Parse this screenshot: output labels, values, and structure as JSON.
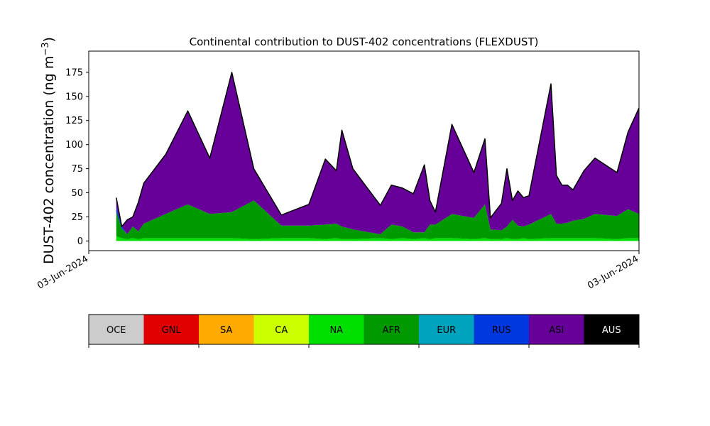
{
  "chart_data": {
    "type": "area",
    "stacked": true,
    "title": "Continental contribution to DUST-402 concentrations (FLEXDUST)",
    "ylabel": "DUST-402 concentration (ng m",
    "ylabel_sup": "−3",
    "ylabel_tail": ")",
    "ylim": [
      -10,
      197
    ],
    "yticks": [
      0,
      25,
      50,
      75,
      100,
      125,
      150,
      175
    ],
    "x_tick_labels": [
      "03-Jun-2024",
      "03-Jun-2024"
    ],
    "x_index_range": [
      0,
      100
    ],
    "x": [
      5,
      6,
      7,
      8,
      9,
      10,
      14,
      18,
      22,
      26,
      30,
      35,
      40,
      43,
      45,
      46,
      48,
      53,
      55,
      57,
      59,
      61,
      62,
      63,
      66,
      70,
      72,
      73,
      75,
      76,
      77,
      78,
      79,
      80,
      84,
      85,
      86,
      87,
      88,
      90,
      92,
      96,
      98,
      100
    ],
    "series": [
      {
        "name": "GNL",
        "color": "#e00000",
        "values": [
          0,
          0,
          0,
          0,
          0,
          0,
          0,
          0,
          0,
          0,
          0,
          0,
          0,
          0,
          0,
          0,
          0,
          0,
          0,
          0,
          0,
          0,
          0,
          0,
          0,
          0,
          0,
          0,
          0,
          0,
          0,
          0,
          0,
          0,
          0,
          0,
          0,
          0,
          0,
          0,
          0,
          0,
          0,
          0
        ]
      },
      {
        "name": "NA",
        "color": "#00e000",
        "values": [
          5,
          3,
          2,
          3,
          2,
          3,
          3,
          3,
          3,
          3,
          2,
          3,
          3,
          2,
          3,
          2,
          2,
          3,
          2,
          3,
          2,
          3,
          2,
          3,
          3,
          2,
          3,
          2,
          2,
          3,
          2,
          2,
          3,
          2,
          3,
          3,
          3,
          3,
          3,
          3,
          3,
          2,
          3,
          3
        ]
      },
      {
        "name": "AFR",
        "color": "#009a00",
        "values": [
          25,
          10,
          5,
          12,
          8,
          15,
          25,
          35,
          25,
          27,
          40,
          13,
          13,
          15,
          15,
          13,
          10,
          4,
          15,
          12,
          7,
          6,
          15,
          14,
          25,
          22,
          35,
          10,
          9,
          12,
          20,
          14,
          12,
          15,
          25,
          15,
          15,
          16,
          18,
          20,
          25,
          24,
          30,
          25
        ]
      },
      {
        "name": "RUS",
        "color": "#0038e0",
        "values": [
          5,
          2,
          0,
          0,
          0,
          0,
          0,
          0,
          0,
          0,
          0,
          0,
          0,
          0,
          0,
          0,
          0,
          0,
          0,
          0,
          0,
          0,
          0,
          0,
          0,
          0,
          0,
          0,
          0,
          0,
          0,
          0,
          0,
          0,
          0,
          0,
          0,
          0,
          0,
          0,
          0,
          0,
          0,
          0
        ]
      },
      {
        "name": "ASI",
        "color": "#660099",
        "values": [
          10,
          0,
          15,
          10,
          30,
          42,
          62,
          97,
          58,
          145,
          33,
          11,
          22,
          68,
          55,
          100,
          63,
          30,
          41,
          40,
          40,
          70,
          25,
          13,
          93,
          47,
          68,
          12,
          28,
          60,
          20,
          36,
          30,
          30,
          135,
          50,
          40,
          39,
          32,
          50,
          58,
          45,
          80,
          110
        ]
      }
    ],
    "legend": [
      {
        "name": "OCE",
        "color": "#cccccc"
      },
      {
        "name": "GNL",
        "color": "#e00000"
      },
      {
        "name": "SA",
        "color": "#ffaa00"
      },
      {
        "name": "CA",
        "color": "#ccff00"
      },
      {
        "name": "NA",
        "color": "#00e000"
      },
      {
        "name": "AFR",
        "color": "#009a00"
      },
      {
        "name": "EUR",
        "color": "#00a3bd"
      },
      {
        "name": "RUS",
        "color": "#0038e0"
      },
      {
        "name": "ASI",
        "color": "#660099"
      },
      {
        "name": "AUS",
        "color": "#000000"
      }
    ],
    "legend_position": "bottom"
  }
}
